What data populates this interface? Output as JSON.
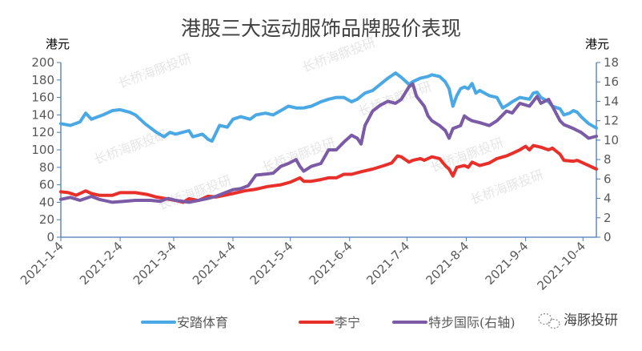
{
  "chart_data": {
    "type": "line",
    "title": "港股三大运动服饰品牌股价表现",
    "ylabel_left": "港元",
    "ylabel_right": "港元",
    "ylim_left": [
      0,
      200
    ],
    "yticks_left": [
      0,
      20,
      40,
      60,
      80,
      100,
      120,
      140,
      160,
      180,
      200
    ],
    "ylim_right": [
      0,
      18
    ],
    "yticks_right": [
      0,
      2,
      4,
      6,
      8,
      10,
      12,
      14,
      16,
      18
    ],
    "x_unit": "days since 2021-1-4",
    "xlim": [
      0,
      280
    ],
    "xticks": [
      {
        "day": 0,
        "label": "2021-1-4"
      },
      {
        "day": 31,
        "label": "2021-2-4"
      },
      {
        "day": 59,
        "label": "2021-3-4"
      },
      {
        "day": 90,
        "label": "2021-4-4"
      },
      {
        "day": 120,
        "label": "2021-5-4"
      },
      {
        "day": 151,
        "label": "2021-6-4"
      },
      {
        "day": 181,
        "label": "2021-7-4"
      },
      {
        "day": 212,
        "label": "2021-8-4"
      },
      {
        "day": 243,
        "label": "2021-9-4"
      },
      {
        "day": 273,
        "label": "2021-10-4"
      }
    ],
    "legend_position": "bottom",
    "series": [
      {
        "name": "安踏体育",
        "axis": "left",
        "color": "#4aa8e4",
        "points": [
          [
            0,
            130
          ],
          [
            5,
            128
          ],
          [
            10,
            132
          ],
          [
            13,
            142
          ],
          [
            16,
            135
          ],
          [
            22,
            140
          ],
          [
            27,
            145
          ],
          [
            31,
            146
          ],
          [
            36,
            143
          ],
          [
            39,
            140
          ],
          [
            44,
            130
          ],
          [
            50,
            120
          ],
          [
            54,
            115
          ],
          [
            57,
            120
          ],
          [
            60,
            118
          ],
          [
            67,
            122
          ],
          [
            69,
            115
          ],
          [
            74,
            118
          ],
          [
            77,
            112
          ],
          [
            79,
            110
          ],
          [
            83,
            128
          ],
          [
            87,
            126
          ],
          [
            90,
            135
          ],
          [
            94,
            138
          ],
          [
            99,
            135
          ],
          [
            102,
            140
          ],
          [
            107,
            142
          ],
          [
            111,
            140
          ],
          [
            115,
            145
          ],
          [
            119,
            150
          ],
          [
            123,
            148
          ],
          [
            127,
            148
          ],
          [
            131,
            150
          ],
          [
            136,
            155
          ],
          [
            140,
            158
          ],
          [
            144,
            160
          ],
          [
            148,
            160
          ],
          [
            152,
            155
          ],
          [
            155,
            158
          ],
          [
            159,
            165
          ],
          [
            163,
            168
          ],
          [
            167,
            175
          ],
          [
            171,
            182
          ],
          [
            175,
            188
          ],
          [
            178,
            183
          ],
          [
            182,
            175
          ],
          [
            184,
            178
          ],
          [
            188,
            182
          ],
          [
            192,
            184
          ],
          [
            194,
            186
          ],
          [
            198,
            184
          ],
          [
            201,
            178
          ],
          [
            203,
            170
          ],
          [
            205,
            150
          ],
          [
            207,
            162
          ],
          [
            209,
            170
          ],
          [
            211,
            172
          ],
          [
            213,
            170
          ],
          [
            215,
            176
          ],
          [
            217,
            165
          ],
          [
            219,
            168
          ],
          [
            224,
            162
          ],
          [
            228,
            160
          ],
          [
            231,
            148
          ],
          [
            234,
            152
          ],
          [
            236,
            155
          ],
          [
            240,
            160
          ],
          [
            245,
            158
          ],
          [
            247,
            165
          ],
          [
            249,
            166
          ],
          [
            251,
            160
          ],
          [
            255,
            155
          ],
          [
            257,
            150
          ],
          [
            261,
            147
          ],
          [
            263,
            140
          ],
          [
            266,
            142
          ],
          [
            268,
            145
          ],
          [
            270,
            143
          ],
          [
            272,
            138
          ],
          [
            276,
            130
          ],
          [
            280,
            125
          ]
        ]
      },
      {
        "name": "李宁",
        "axis": "left",
        "color": "#e8302b",
        "points": [
          [
            0,
            52
          ],
          [
            4,
            51
          ],
          [
            8,
            48
          ],
          [
            13,
            53
          ],
          [
            16,
            50
          ],
          [
            20,
            48
          ],
          [
            27,
            48
          ],
          [
            31,
            51
          ],
          [
            39,
            51
          ],
          [
            45,
            49
          ],
          [
            50,
            46
          ],
          [
            55,
            44
          ],
          [
            60,
            42
          ],
          [
            64,
            40
          ],
          [
            67,
            44
          ],
          [
            72,
            42
          ],
          [
            77,
            47
          ],
          [
            81,
            46
          ],
          [
            90,
            50
          ],
          [
            96,
            53
          ],
          [
            102,
            55
          ],
          [
            108,
            58
          ],
          [
            115,
            60
          ],
          [
            120,
            63
          ],
          [
            125,
            68
          ],
          [
            127,
            64
          ],
          [
            131,
            64
          ],
          [
            136,
            66
          ],
          [
            140,
            68
          ],
          [
            144,
            68
          ],
          [
            148,
            72
          ],
          [
            152,
            72
          ],
          [
            157,
            75
          ],
          [
            163,
            78
          ],
          [
            169,
            82
          ],
          [
            173,
            85
          ],
          [
            176,
            93
          ],
          [
            178,
            92
          ],
          [
            182,
            86
          ],
          [
            184,
            88
          ],
          [
            188,
            90
          ],
          [
            190,
            88
          ],
          [
            194,
            92
          ],
          [
            198,
            90
          ],
          [
            201,
            82
          ],
          [
            203,
            78
          ],
          [
            205,
            70
          ],
          [
            207,
            80
          ],
          [
            211,
            82
          ],
          [
            213,
            80
          ],
          [
            215,
            86
          ],
          [
            219,
            82
          ],
          [
            224,
            85
          ],
          [
            228,
            90
          ],
          [
            233,
            93
          ],
          [
            236,
            96
          ],
          [
            240,
            100
          ],
          [
            243,
            104
          ],
          [
            245,
            100
          ],
          [
            247,
            105
          ],
          [
            251,
            103
          ],
          [
            255,
            100
          ],
          [
            257,
            102
          ],
          [
            261,
            95
          ],
          [
            263,
            88
          ],
          [
            268,
            87
          ],
          [
            270,
            88
          ],
          [
            276,
            82
          ],
          [
            280,
            78
          ]
        ]
      },
      {
        "name": "特步国际(右轴)",
        "axis": "right",
        "color": "#7b5aa6",
        "points": [
          [
            0,
            3.9
          ],
          [
            5,
            4.1
          ],
          [
            10,
            3.8
          ],
          [
            16,
            4.2
          ],
          [
            20,
            3.9
          ],
          [
            27,
            3.6
          ],
          [
            33,
            3.7
          ],
          [
            39,
            3.8
          ],
          [
            47,
            3.8
          ],
          [
            52,
            3.7
          ],
          [
            56,
            4.0
          ],
          [
            60,
            3.8
          ],
          [
            67,
            3.6
          ],
          [
            72,
            3.8
          ],
          [
            77,
            4.0
          ],
          [
            81,
            4.2
          ],
          [
            86,
            4.6
          ],
          [
            90,
            4.9
          ],
          [
            94,
            5.0
          ],
          [
            98,
            5.3
          ],
          [
            102,
            6.4
          ],
          [
            107,
            6.5
          ],
          [
            111,
            6.6
          ],
          [
            115,
            7.3
          ],
          [
            119,
            7.6
          ],
          [
            123,
            8.0
          ],
          [
            125,
            7.3
          ],
          [
            127,
            6.8
          ],
          [
            131,
            7.3
          ],
          [
            136,
            7.6
          ],
          [
            140,
            9.0
          ],
          [
            144,
            9.0
          ],
          [
            148,
            9.8
          ],
          [
            152,
            10.5
          ],
          [
            155,
            10.2
          ],
          [
            157,
            9.6
          ],
          [
            159,
            11.5
          ],
          [
            163,
            13.0
          ],
          [
            167,
            13.6
          ],
          [
            171,
            14.0
          ],
          [
            175,
            13.8
          ],
          [
            178,
            14.2
          ],
          [
            182,
            15.5
          ],
          [
            184,
            15.8
          ],
          [
            186,
            14.5
          ],
          [
            188,
            14.0
          ],
          [
            190,
            13.5
          ],
          [
            192,
            12.5
          ],
          [
            194,
            12.0
          ],
          [
            198,
            11.5
          ],
          [
            201,
            11.0
          ],
          [
            203,
            10.2
          ],
          [
            205,
            11.2
          ],
          [
            209,
            11.5
          ],
          [
            211,
            12.5
          ],
          [
            213,
            12.2
          ],
          [
            215,
            12.0
          ],
          [
            219,
            11.8
          ],
          [
            224,
            11.5
          ],
          [
            228,
            12.0
          ],
          [
            233,
            13.0
          ],
          [
            236,
            12.8
          ],
          [
            240,
            13.8
          ],
          [
            245,
            13.5
          ],
          [
            249,
            14.5
          ],
          [
            251,
            13.8
          ],
          [
            255,
            14.2
          ],
          [
            257,
            13.5
          ],
          [
            261,
            12.0
          ],
          [
            263,
            11.6
          ],
          [
            268,
            11.2
          ],
          [
            272,
            10.8
          ],
          [
            276,
            10.2
          ],
          [
            280,
            10.4
          ]
        ]
      }
    ]
  },
  "watermark": {
    "text": "海豚投研",
    "background_text": "长桥海豚投研"
  }
}
